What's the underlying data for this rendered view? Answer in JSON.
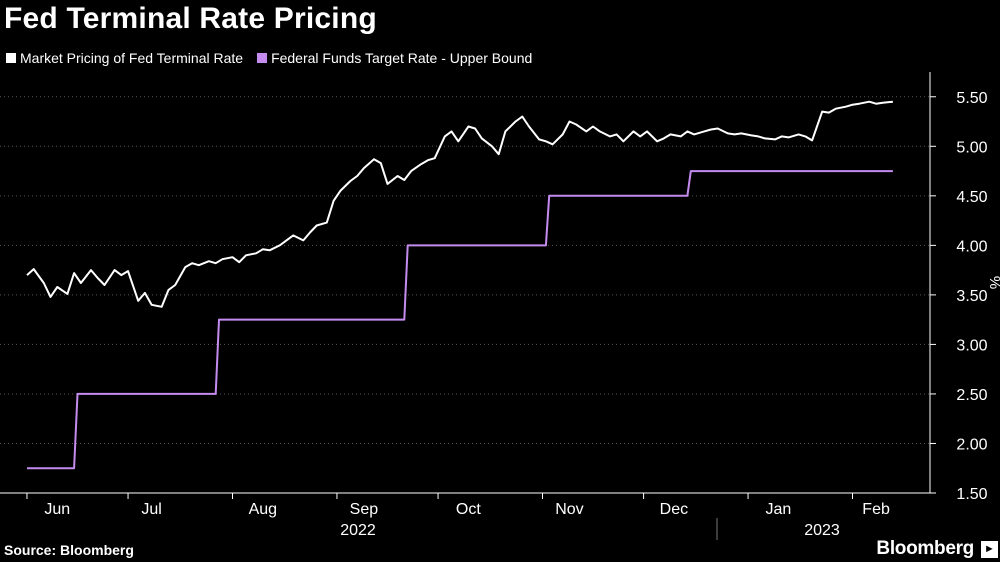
{
  "title": "Fed Terminal Rate Pricing",
  "source": "Source: Bloomberg",
  "brand": "Bloomberg",
  "colors": {
    "market": "#ffffff",
    "target": "#c58cf0",
    "grid": "#555555",
    "background": "#000000"
  },
  "chart_data": {
    "type": "line",
    "ylabel": "%",
    "ylim": [
      1.5,
      5.75
    ],
    "yticks": [
      "1.50",
      "2.00",
      "2.50",
      "3.00",
      "3.50",
      "4.00",
      "4.50",
      "5.00",
      "5.50"
    ],
    "grid": true,
    "legend_position": "top-left",
    "x_months": [
      "Jun",
      "Jul",
      "Aug",
      "Sep",
      "Oct",
      "Nov",
      "Dec",
      "Jan",
      "Feb"
    ],
    "x_years": [
      "2022",
      "2023"
    ],
    "series": [
      {
        "name": "Market Pricing of Fed Terminal Rate",
        "x": [
          "2022-06-01",
          "2022-06-03",
          "2022-06-06",
          "2022-06-08",
          "2022-06-10",
          "2022-06-13",
          "2022-06-15",
          "2022-06-17",
          "2022-06-20",
          "2022-06-22",
          "2022-06-24",
          "2022-06-27",
          "2022-06-29",
          "2022-07-01",
          "2022-07-04",
          "2022-07-06",
          "2022-07-08",
          "2022-07-11",
          "2022-07-13",
          "2022-07-15",
          "2022-07-18",
          "2022-07-20",
          "2022-07-22",
          "2022-07-25",
          "2022-07-27",
          "2022-07-29",
          "2022-08-01",
          "2022-08-03",
          "2022-08-05",
          "2022-08-08",
          "2022-08-10",
          "2022-08-12",
          "2022-08-15",
          "2022-08-17",
          "2022-08-19",
          "2022-08-22",
          "2022-08-24",
          "2022-08-26",
          "2022-08-29",
          "2022-08-31",
          "2022-09-02",
          "2022-09-05",
          "2022-09-07",
          "2022-09-09",
          "2022-09-12",
          "2022-09-14",
          "2022-09-16",
          "2022-09-19",
          "2022-09-21",
          "2022-09-23",
          "2022-09-26",
          "2022-09-28",
          "2022-09-30",
          "2022-10-03",
          "2022-10-05",
          "2022-10-07",
          "2022-10-10",
          "2022-10-12",
          "2022-10-14",
          "2022-10-17",
          "2022-10-19",
          "2022-10-21",
          "2022-10-24",
          "2022-10-26",
          "2022-10-28",
          "2022-10-31",
          "2022-11-02",
          "2022-11-04",
          "2022-11-07",
          "2022-11-09",
          "2022-11-11",
          "2022-11-14",
          "2022-11-16",
          "2022-11-18",
          "2022-11-21",
          "2022-11-23",
          "2022-11-25",
          "2022-11-28",
          "2022-11-30",
          "2022-12-02",
          "2022-12-05",
          "2022-12-07",
          "2022-12-09",
          "2022-12-12",
          "2022-12-14",
          "2022-12-16",
          "2022-12-19",
          "2022-12-21",
          "2022-12-23",
          "2022-12-26",
          "2022-12-28",
          "2022-12-30",
          "2023-01-02",
          "2023-01-04",
          "2023-01-06",
          "2023-01-09",
          "2023-01-11",
          "2023-01-13",
          "2023-01-16",
          "2023-01-18",
          "2023-01-20",
          "2023-01-23",
          "2023-01-25",
          "2023-01-27",
          "2023-01-30",
          "2023-02-01",
          "2023-02-03",
          "2023-02-06",
          "2023-02-08",
          "2023-02-10",
          "2023-02-13"
        ],
        "values": [
          3.7,
          3.76,
          3.62,
          3.48,
          3.58,
          3.51,
          3.72,
          3.62,
          3.75,
          3.67,
          3.6,
          3.75,
          3.7,
          3.74,
          3.44,
          3.52,
          3.4,
          3.38,
          3.55,
          3.6,
          3.78,
          3.82,
          3.8,
          3.84,
          3.82,
          3.86,
          3.88,
          3.83,
          3.9,
          3.92,
          3.96,
          3.95,
          4.0,
          4.05,
          4.1,
          4.05,
          4.13,
          4.2,
          4.23,
          4.45,
          4.55,
          4.65,
          4.7,
          4.78,
          4.87,
          4.83,
          4.62,
          4.7,
          4.66,
          4.75,
          4.82,
          4.86,
          4.88,
          5.1,
          5.15,
          5.05,
          5.2,
          5.18,
          5.08,
          5.0,
          4.92,
          5.15,
          5.25,
          5.3,
          5.2,
          5.07,
          5.05,
          5.02,
          5.12,
          5.25,
          5.22,
          5.15,
          5.2,
          5.15,
          5.1,
          5.12,
          5.05,
          5.15,
          5.1,
          5.15,
          5.05,
          5.08,
          5.12,
          5.1,
          5.15,
          5.12,
          5.15,
          5.17,
          5.18,
          5.13,
          5.12,
          5.13,
          5.11,
          5.1,
          5.08,
          5.07,
          5.1,
          5.09,
          5.12,
          5.1,
          5.06,
          5.35,
          5.34,
          5.38,
          5.4,
          5.42,
          5.43,
          5.45,
          5.43,
          5.44,
          5.45
        ]
      },
      {
        "name": "Federal Funds Target Rate - Upper Bound",
        "x": [
          "2022-06-01",
          "2022-06-15",
          "2022-06-16",
          "2022-07-27",
          "2022-07-28",
          "2022-09-21",
          "2022-09-22",
          "2022-11-02",
          "2022-11-03",
          "2022-12-14",
          "2022-12-15",
          "2023-02-01",
          "2023-02-02",
          "2023-02-13"
        ],
        "values": [
          1.75,
          1.75,
          2.5,
          2.5,
          3.25,
          3.25,
          4.0,
          4.0,
          4.5,
          4.5,
          4.75,
          4.75,
          4.75,
          4.75
        ],
        "step": true
      }
    ]
  }
}
